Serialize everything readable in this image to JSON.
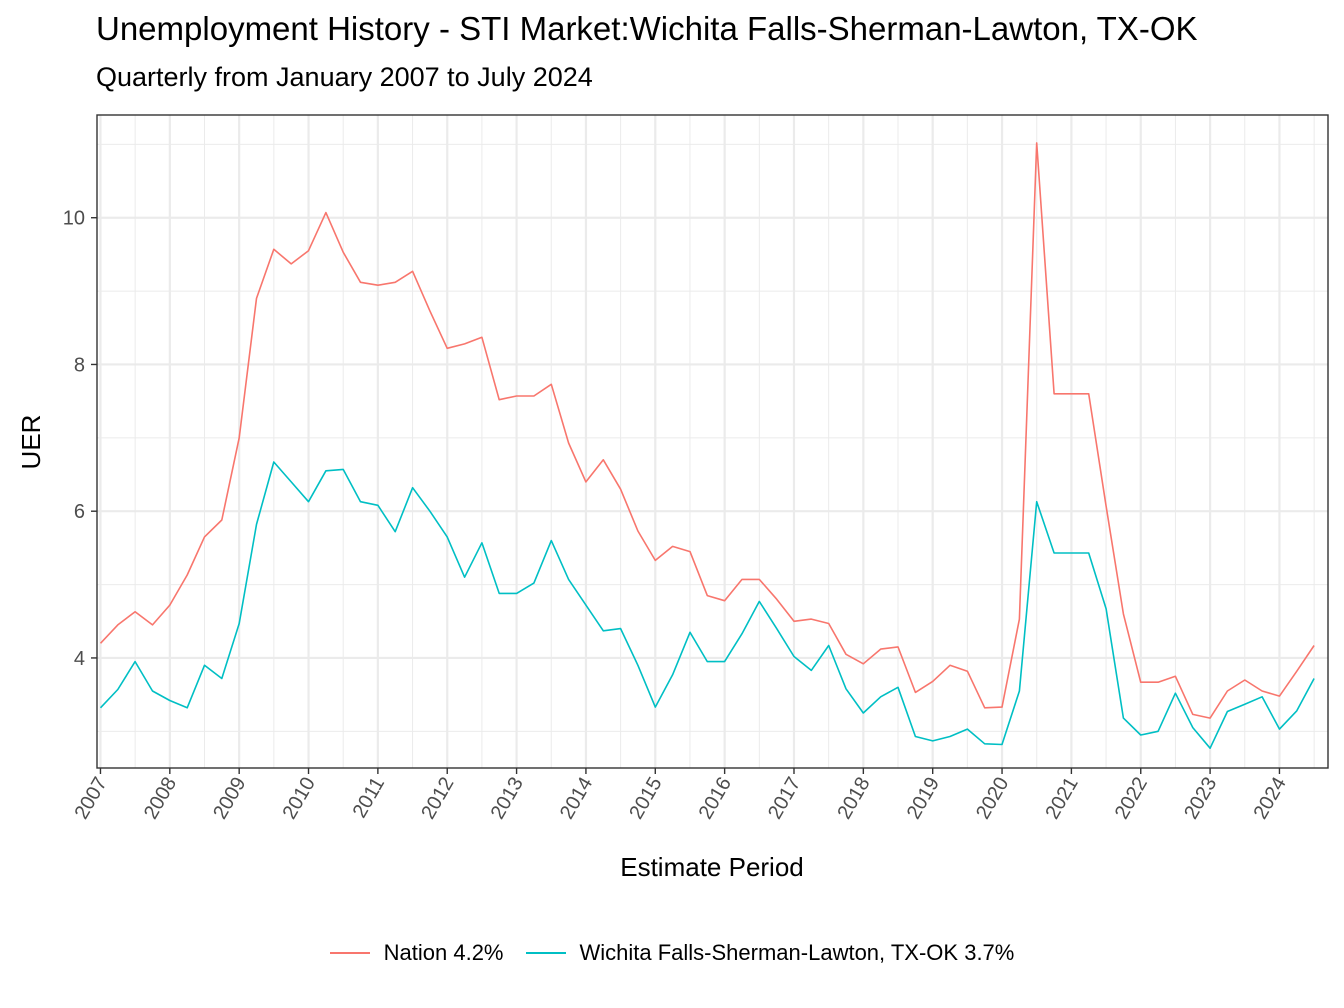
{
  "title": "Unemployment History - STI Market:Wichita Falls-Sherman-Lawton, TX-OK",
  "subtitle": "Quarterly from January 2007 to July 2024",
  "chart_data": {
    "type": "line",
    "title": "Unemployment History - STI Market:Wichita Falls-Sherman-Lawton, TX-OK",
    "subtitle": "Quarterly from January 2007 to July 2024",
    "xlabel": "Estimate Period",
    "ylabel": "UER",
    "x_start": "2007-01",
    "x_step": "quarter",
    "x_ticks": [
      "2007",
      "2008",
      "2009",
      "2010",
      "2011",
      "2012",
      "2013",
      "2014",
      "2015",
      "2016",
      "2017",
      "2018",
      "2019",
      "2020",
      "2021",
      "2022",
      "2023",
      "2024"
    ],
    "y_ticks": [
      4,
      6,
      8,
      10
    ],
    "xlim": [
      2006.95,
      2024.7
    ],
    "ylim": [
      2.5,
      11.4
    ],
    "grid": true,
    "legend_position": "bottom",
    "series": [
      {
        "name": "Nation 4.2%",
        "color": "#F8766D",
        "values": [
          4.2,
          4.45,
          4.63,
          4.45,
          4.72,
          5.13,
          5.65,
          5.88,
          7.0,
          8.9,
          9.57,
          9.37,
          9.55,
          10.07,
          9.53,
          9.12,
          9.08,
          9.12,
          9.27,
          8.73,
          8.22,
          8.28,
          8.37,
          7.52,
          7.57,
          7.57,
          7.73,
          6.93,
          6.4,
          6.7,
          6.3,
          5.73,
          5.33,
          5.52,
          5.45,
          4.85,
          4.78,
          5.07,
          5.07,
          4.8,
          4.5,
          4.53,
          4.47,
          4.05,
          3.92,
          4.12,
          4.15,
          3.53,
          3.68,
          3.9,
          3.82,
          3.32,
          3.33,
          4.53,
          11.02,
          7.6,
          7.6,
          7.6,
          6.07,
          4.6,
          3.67,
          3.67,
          3.75,
          3.23,
          3.18,
          3.55,
          3.7,
          3.55,
          3.48,
          3.82,
          4.17
        ]
      },
      {
        "name": "Wichita Falls-Sherman-Lawton, TX-OK 3.7%",
        "color": "#00BFC4",
        "values": [
          3.32,
          3.57,
          3.95,
          3.55,
          3.42,
          3.32,
          3.9,
          3.72,
          4.47,
          5.82,
          6.67,
          6.4,
          6.13,
          6.55,
          6.57,
          6.13,
          6.08,
          5.72,
          6.32,
          6.0,
          5.65,
          5.1,
          5.57,
          4.88,
          4.88,
          5.02,
          5.6,
          5.07,
          4.72,
          4.37,
          4.4,
          3.9,
          3.33,
          3.77,
          4.35,
          3.95,
          3.95,
          4.33,
          4.77,
          4.4,
          4.02,
          3.83,
          4.17,
          3.58,
          3.25,
          3.47,
          3.6,
          2.93,
          2.87,
          2.93,
          3.03,
          2.83,
          2.82,
          3.55,
          6.13,
          5.43,
          5.43,
          5.43,
          4.67,
          3.18,
          2.95,
          3.0,
          3.52,
          3.05,
          2.77,
          3.27,
          3.37,
          3.47,
          3.03,
          3.28,
          3.72
        ]
      }
    ]
  }
}
